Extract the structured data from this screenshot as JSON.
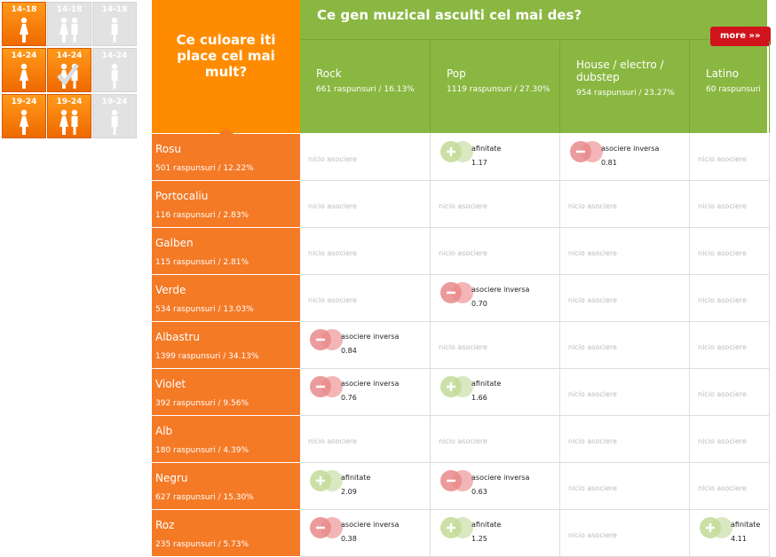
{
  "filters": [
    {
      "label": "14-18",
      "icon": "female",
      "state": "on"
    },
    {
      "label": "14-18",
      "icon": "pair",
      "state": "off"
    },
    {
      "label": "14-18",
      "icon": "male",
      "state": "off"
    },
    {
      "label": "14-24",
      "icon": "female",
      "state": "on"
    },
    {
      "label": "14-24",
      "icon": "pair",
      "state": "checked"
    },
    {
      "label": "14-24",
      "icon": "male",
      "state": "off"
    },
    {
      "label": "19-24",
      "icon": "female",
      "state": "on"
    },
    {
      "label": "19-24",
      "icon": "pair",
      "state": "on"
    },
    {
      "label": "19-24",
      "icon": "male",
      "state": "off"
    }
  ],
  "row_question": "Ce culoare iti place cel mai mult?",
  "col_question": "Ce gen muzical asculti cel mai des?",
  "more": "more",
  "columns": [
    {
      "name": "Rock",
      "stats": "661 raspunsuri / 16.13%"
    },
    {
      "name": "Pop",
      "stats": "1119 raspunsuri / 27.30%"
    },
    {
      "name": "House / electro / dubstep",
      "stats": "954 raspunsuri / 23.27%"
    },
    {
      "name": "Latino",
      "stats": "60 raspunsuri"
    }
  ],
  "rows": [
    {
      "name": "Rosu",
      "stats": "501 raspunsuri / 12.22%",
      "cells": [
        {
          "kind": "none",
          "text": "nicio asociere"
        },
        {
          "kind": "pos",
          "text": "afinitate",
          "value": "1.17"
        },
        {
          "kind": "neg",
          "text": "asociere inversa",
          "value": "0.81"
        },
        {
          "kind": "none",
          "text": "nicio asociere"
        }
      ]
    },
    {
      "name": "Portocaliu",
      "stats": "116 raspunsuri / 2.83%",
      "cells": [
        {
          "kind": "none",
          "text": "nicio asociere"
        },
        {
          "kind": "none",
          "text": "nicio asociere"
        },
        {
          "kind": "none",
          "text": "nicio asociere"
        },
        {
          "kind": "none",
          "text": "nicio asociere"
        }
      ]
    },
    {
      "name": "Galben",
      "stats": "115 raspunsuri / 2.81%",
      "cells": [
        {
          "kind": "none",
          "text": "nicio asociere"
        },
        {
          "kind": "none",
          "text": "nicio asociere"
        },
        {
          "kind": "none",
          "text": "nicio asociere"
        },
        {
          "kind": "none",
          "text": "nicio asociere"
        }
      ]
    },
    {
      "name": "Verde",
      "stats": "534 raspunsuri / 13.03%",
      "cells": [
        {
          "kind": "none",
          "text": "nicio asociere"
        },
        {
          "kind": "neg",
          "text": "asociere inversa",
          "value": "0.70"
        },
        {
          "kind": "none",
          "text": "nicio asociere"
        },
        {
          "kind": "none",
          "text": "nicio asociere"
        }
      ]
    },
    {
      "name": "Albastru",
      "stats": "1399 raspunsuri / 34.13%",
      "cells": [
        {
          "kind": "neg",
          "text": "asociere inversa",
          "value": "0.84"
        },
        {
          "kind": "none",
          "text": "nicio asociere"
        },
        {
          "kind": "none",
          "text": "nicio asociere"
        },
        {
          "kind": "none",
          "text": "nicio asociere"
        }
      ]
    },
    {
      "name": "Violet",
      "stats": "392 raspunsuri / 9.56%",
      "cells": [
        {
          "kind": "neg",
          "text": "asociere inversa",
          "value": "0.76"
        },
        {
          "kind": "pos",
          "text": "afinitate",
          "value": "1.66"
        },
        {
          "kind": "none",
          "text": "nicio asociere"
        },
        {
          "kind": "none",
          "text": "nicio asociere"
        }
      ]
    },
    {
      "name": "Alb",
      "stats": "180 raspunsuri / 4.39%",
      "cells": [
        {
          "kind": "none",
          "text": "nicio asociere"
        },
        {
          "kind": "none",
          "text": "nicio asociere"
        },
        {
          "kind": "none",
          "text": "nicio asociere"
        },
        {
          "kind": "none",
          "text": "nicio asociere"
        }
      ]
    },
    {
      "name": "Negru",
      "stats": "627 raspunsuri / 15.30%",
      "cells": [
        {
          "kind": "pos",
          "text": "afinitate",
          "value": "2.09"
        },
        {
          "kind": "neg",
          "text": "asociere inversa",
          "value": "0.63"
        },
        {
          "kind": "none",
          "text": "nicio asociere"
        },
        {
          "kind": "none",
          "text": "nicio asociere"
        }
      ]
    },
    {
      "name": "Roz",
      "stats": "235 raspunsuri / 5.73%",
      "cells": [
        {
          "kind": "neg",
          "text": "asociere inversa",
          "value": "0.38"
        },
        {
          "kind": "pos",
          "text": "afinitate",
          "value": "1.25"
        },
        {
          "kind": "none",
          "text": "nicio asociere"
        },
        {
          "kind": "pos",
          "text": "afinitate",
          "value": "4.11"
        }
      ]
    }
  ]
}
